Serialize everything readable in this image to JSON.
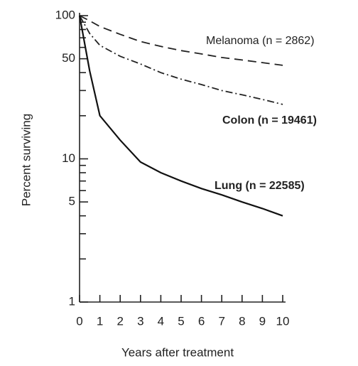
{
  "chart_data": {
    "type": "line",
    "x_label": "Years after treatment",
    "y_label": "Percent surviving",
    "x": [
      0,
      0.5,
      1,
      2,
      3,
      4,
      5,
      6,
      7,
      8,
      9,
      10
    ],
    "series": [
      {
        "name": "Melanoma (n = 2862)",
        "color": "#222222",
        "style": "dashed",
        "values": [
          100,
          92,
          84,
          74,
          66,
          61,
          57,
          54,
          51,
          49,
          47,
          45
        ]
      },
      {
        "name": "Colon (n = 19461)",
        "color": "#222222",
        "style": "dashdot",
        "values": [
          100,
          75,
          62,
          52,
          46,
          40,
          36,
          33,
          30,
          28,
          26,
          24
        ]
      },
      {
        "name": "Lung (n = 22585)",
        "color": "#111111",
        "style": "solid",
        "values": [
          100,
          41,
          20,
          13.5,
          9.5,
          8,
          7,
          6.2,
          5.6,
          5,
          4.5,
          4
        ]
      }
    ],
    "xlim": [
      0,
      10
    ],
    "xticks": [
      0,
      1,
      2,
      3,
      4,
      5,
      6,
      7,
      8,
      9,
      10
    ],
    "ylim": [
      1,
      100
    ],
    "yscale": "log",
    "yticks": [
      1,
      5,
      10,
      50,
      100
    ],
    "minor_yticks": [
      2,
      3,
      4,
      6,
      7,
      8,
      9,
      20,
      30,
      40,
      60,
      70,
      80,
      90
    ]
  }
}
